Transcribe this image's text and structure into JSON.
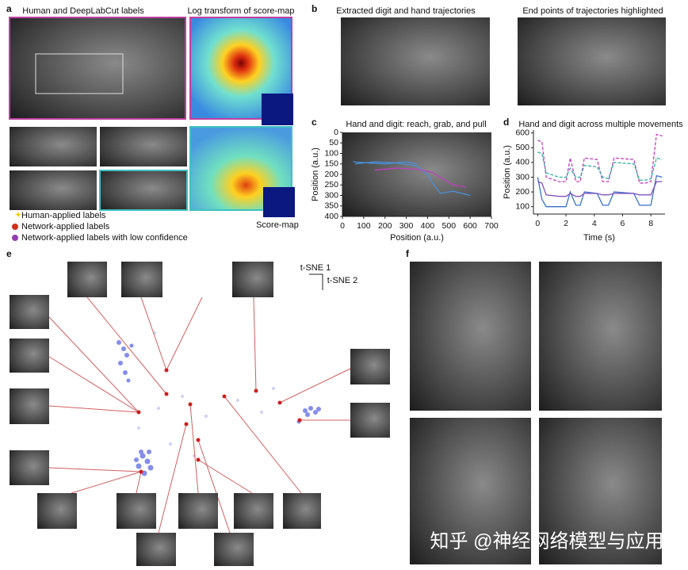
{
  "panel_a": {
    "label": "a",
    "title_left": "Human and DeepLabCut labels",
    "title_right": "Log transform of score-map",
    "scoremap_label": "Score-map",
    "legend": [
      "Human-applied labels",
      "Network-applied labels",
      "Network-applied labels with low confidence"
    ]
  },
  "panel_b": {
    "label": "b",
    "title_left": "Extracted digit and hand trajectories",
    "title_right": "End points of trajectories highlighted"
  },
  "panel_e": {
    "label": "e",
    "axis_1": "t-SNE 1",
    "axis_2": "t-SNE 2"
  },
  "panel_f": {
    "label": "f"
  },
  "watermark": "知乎 @神经网络模型与应用",
  "chart_data": [
    {
      "label": "c",
      "type": "line",
      "title": "Hand and digit: reach, grab, and pull",
      "xlabel": "Position (a.u.)",
      "ylabel": "Position (a.u.)",
      "xlim": [
        0,
        700
      ],
      "ylim": [
        400,
        0
      ],
      "xticks": [
        0,
        100,
        200,
        300,
        400,
        500,
        600,
        700
      ],
      "yticks": [
        0,
        50,
        100,
        150,
        200,
        250,
        300,
        350,
        400
      ],
      "series": [
        {
          "color": "#4a90d9",
          "x": [
            60,
            150,
            250,
            350,
            400,
            430,
            460,
            520,
            600
          ],
          "values": [
            150,
            140,
            145,
            160,
            200,
            250,
            290,
            280,
            300
          ]
        },
        {
          "color": "#4a90d9",
          "x": [
            50,
            120,
            200,
            300,
            350
          ],
          "values": [
            140,
            145,
            150,
            140,
            150
          ]
        },
        {
          "color": "#c040c0",
          "x": [
            150,
            250,
            350,
            420,
            470,
            520,
            580
          ],
          "values": [
            180,
            170,
            175,
            190,
            220,
            250,
            260
          ]
        }
      ]
    },
    {
      "label": "d",
      "type": "line",
      "title": "Hand and digit across multiple movements",
      "xlabel": "Time (s)",
      "ylabel": "Position (a.u.)",
      "xlim": [
        -0.3,
        9
      ],
      "ylim": [
        50,
        620
      ],
      "xticks": [
        0,
        2,
        4,
        6,
        8
      ],
      "yticks": [
        100,
        200,
        300,
        400,
        500,
        600
      ],
      "x": [
        0,
        0.3,
        0.6,
        1.5,
        2.0,
        2.3,
        2.7,
        3.0,
        3.3,
        4.2,
        4.6,
        5.0,
        5.4,
        6.8,
        7.2,
        7.6,
        8.0,
        8.4,
        8.8
      ],
      "series": [
        {
          "color": "#c040c0",
          "dashed": true,
          "values": [
            550,
            540,
            300,
            270,
            270,
            430,
            270,
            270,
            430,
            420,
            270,
            270,
            430,
            420,
            260,
            260,
            270,
            590,
            580
          ]
        },
        {
          "color": "#30b0a0",
          "dashed": true,
          "values": [
            470,
            460,
            330,
            300,
            300,
            360,
            300,
            300,
            380,
            370,
            300,
            290,
            400,
            390,
            280,
            280,
            290,
            430,
            420
          ]
        },
        {
          "color": "#3a70c8",
          "dashed": false,
          "values": [
            300,
            150,
            100,
            100,
            100,
            200,
            110,
            110,
            200,
            190,
            110,
            110,
            200,
            190,
            110,
            110,
            110,
            310,
            300
          ]
        },
        {
          "color": "#8050c0",
          "dashed": false,
          "values": [
            270,
            260,
            180,
            170,
            170,
            190,
            170,
            170,
            190,
            190,
            180,
            180,
            190,
            190,
            180,
            180,
            180,
            270,
            270
          ]
        }
      ]
    }
  ]
}
